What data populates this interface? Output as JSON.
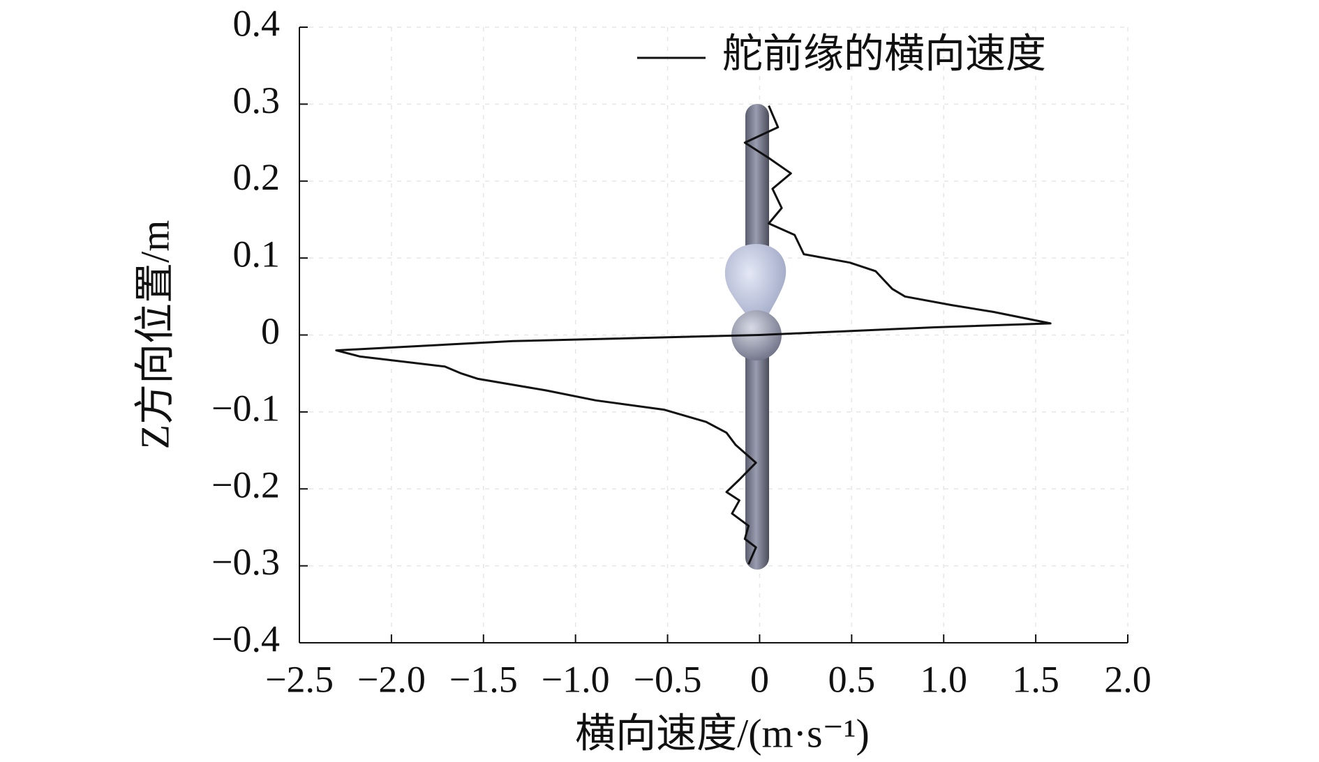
{
  "chart_data": {
    "type": "line",
    "xlabel": "横向速度/(m·s⁻¹)",
    "ylabel": "Z方向位置/m",
    "x": [
      0.05,
      0.1,
      -0.08,
      0.05,
      0.17,
      0.07,
      0.12,
      0.05,
      0.19,
      0.24,
      0.49,
      0.63,
      0.72,
      0.79,
      1.04,
      1.27,
      1.58,
      0.95,
      0,
      -1.34,
      -2.3,
      -2.17,
      -1.71,
      -1.62,
      -1.53,
      -1.16,
      -0.89,
      -0.52,
      -0.29,
      -0.18,
      -0.13,
      -0.02,
      -0.11,
      -0.18,
      -0.11,
      -0.15,
      -0.06,
      -0.08,
      -0.02,
      -0.06
    ],
    "series": [
      {
        "name": "舵前缘的横向速度",
        "color": "#111111",
        "values": [
          0.298,
          0.27,
          0.25,
          0.23,
          0.21,
          0.19,
          0.165,
          0.145,
          0.13,
          0.105,
          0.094,
          0.083,
          0.06,
          0.05,
          0.039,
          0.03,
          0.015,
          0.01,
          0,
          -0.008,
          -0.02,
          -0.028,
          -0.041,
          -0.05,
          -0.057,
          -0.072,
          -0.085,
          -0.097,
          -0.113,
          -0.127,
          -0.143,
          -0.166,
          -0.188,
          -0.204,
          -0.215,
          -0.232,
          -0.248,
          -0.265,
          -0.276,
          -0.298
        ]
      }
    ],
    "xlim": [
      -2.5,
      2.0
    ],
    "xticks": [
      {
        "value": -2.5,
        "label": "−2.5"
      },
      {
        "value": -2.0,
        "label": "−2.0"
      },
      {
        "value": -1.5,
        "label": "−1.5"
      },
      {
        "value": -1.0,
        "label": "−1.0"
      },
      {
        "value": -0.5,
        "label": "−0.5"
      },
      0,
      0.5,
      {
        "value": 1.0,
        "label": "1.0"
      },
      1.5,
      {
        "value": 2.0,
        "label": "2.0"
      }
    ],
    "ylim": [
      -0.4,
      0.4
    ],
    "yticks": [
      0.4,
      0.3,
      0.2,
      0.1,
      0,
      {
        "value": -0.1,
        "label": "−0.1"
      },
      {
        "value": -0.2,
        "label": "−0.2"
      },
      {
        "value": -0.3,
        "label": "−0.3"
      },
      {
        "value": -0.4,
        "label": "−0.4"
      }
    ],
    "grid": true,
    "legend": "upper right"
  }
}
